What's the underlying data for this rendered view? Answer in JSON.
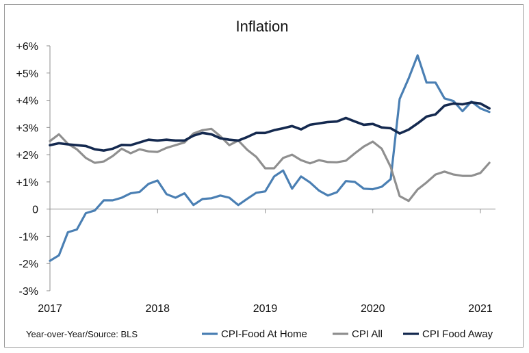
{
  "chart_data": {
    "type": "line",
    "title": "Inflation",
    "note": "Year-over-Year/Source: BLS",
    "xlabel": "",
    "ylabel": "",
    "xlim": [
      2017.0,
      2021.14
    ],
    "ylim": [
      -3,
      6
    ],
    "x_ticks": [
      2017,
      2018,
      2019,
      2020,
      2021
    ],
    "x_tick_labels": [
      "2017",
      "2018",
      "2019",
      "2020",
      "2021"
    ],
    "y_ticks": [
      6,
      5,
      4,
      3,
      2,
      1,
      0,
      -1,
      -2,
      -3
    ],
    "y_tick_labels": [
      "+6%",
      "+5%",
      "+4%",
      "+3%",
      "+2%",
      "+1%",
      "0",
      "-1%",
      "-2%",
      "-3%"
    ],
    "grid": false,
    "legend_position": "bottom-right",
    "series": [
      {
        "name": "CPI-Food At Home",
        "color": "#4a7fb3",
        "x_start": 2017.0,
        "x_step": 0.08333,
        "values": [
          -1.9,
          -1.7,
          -0.85,
          -0.75,
          -0.15,
          -0.05,
          0.32,
          0.32,
          0.42,
          0.58,
          0.63,
          0.93,
          1.05,
          0.55,
          0.42,
          0.58,
          0.15,
          0.37,
          0.4,
          0.5,
          0.42,
          0.15,
          0.38,
          0.6,
          0.65,
          1.2,
          1.42,
          0.75,
          1.2,
          0.98,
          0.68,
          0.5,
          0.62,
          1.03,
          1.0,
          0.75,
          0.73,
          0.82,
          1.1,
          4.05,
          4.8,
          5.65,
          4.65,
          4.65,
          4.07,
          3.97,
          3.6,
          3.95,
          3.7,
          3.57
        ]
      },
      {
        "name": "CPI All",
        "color": "#8f8f8f",
        "x_start": 2017.0,
        "x_step": 0.08333,
        "values": [
          2.5,
          2.75,
          2.4,
          2.2,
          1.88,
          1.7,
          1.75,
          1.95,
          2.22,
          2.05,
          2.2,
          2.12,
          2.1,
          2.25,
          2.35,
          2.45,
          2.78,
          2.9,
          2.95,
          2.68,
          2.35,
          2.52,
          2.18,
          1.92,
          1.5,
          1.5,
          1.88,
          2.0,
          1.8,
          1.68,
          1.8,
          1.73,
          1.72,
          1.78,
          2.05,
          2.3,
          2.48,
          2.22,
          1.55,
          0.48,
          0.3,
          0.72,
          0.98,
          1.27,
          1.38,
          1.27,
          1.22,
          1.22,
          1.33,
          1.7
        ]
      },
      {
        "name": "CPI Food Away",
        "color": "#14294f",
        "x_start": 2017.0,
        "x_step": 0.08333,
        "values": [
          2.35,
          2.42,
          2.38,
          2.35,
          2.32,
          2.2,
          2.15,
          2.22,
          2.36,
          2.35,
          2.45,
          2.55,
          2.52,
          2.55,
          2.52,
          2.52,
          2.7,
          2.8,
          2.75,
          2.6,
          2.55,
          2.52,
          2.65,
          2.8,
          2.8,
          2.9,
          2.97,
          3.05,
          2.93,
          3.1,
          3.15,
          3.2,
          3.22,
          3.35,
          3.22,
          3.1,
          3.13,
          3.0,
          2.97,
          2.78,
          2.92,
          3.15,
          3.4,
          3.48,
          3.8,
          3.88,
          3.85,
          3.92,
          3.88,
          3.7
        ]
      }
    ]
  }
}
